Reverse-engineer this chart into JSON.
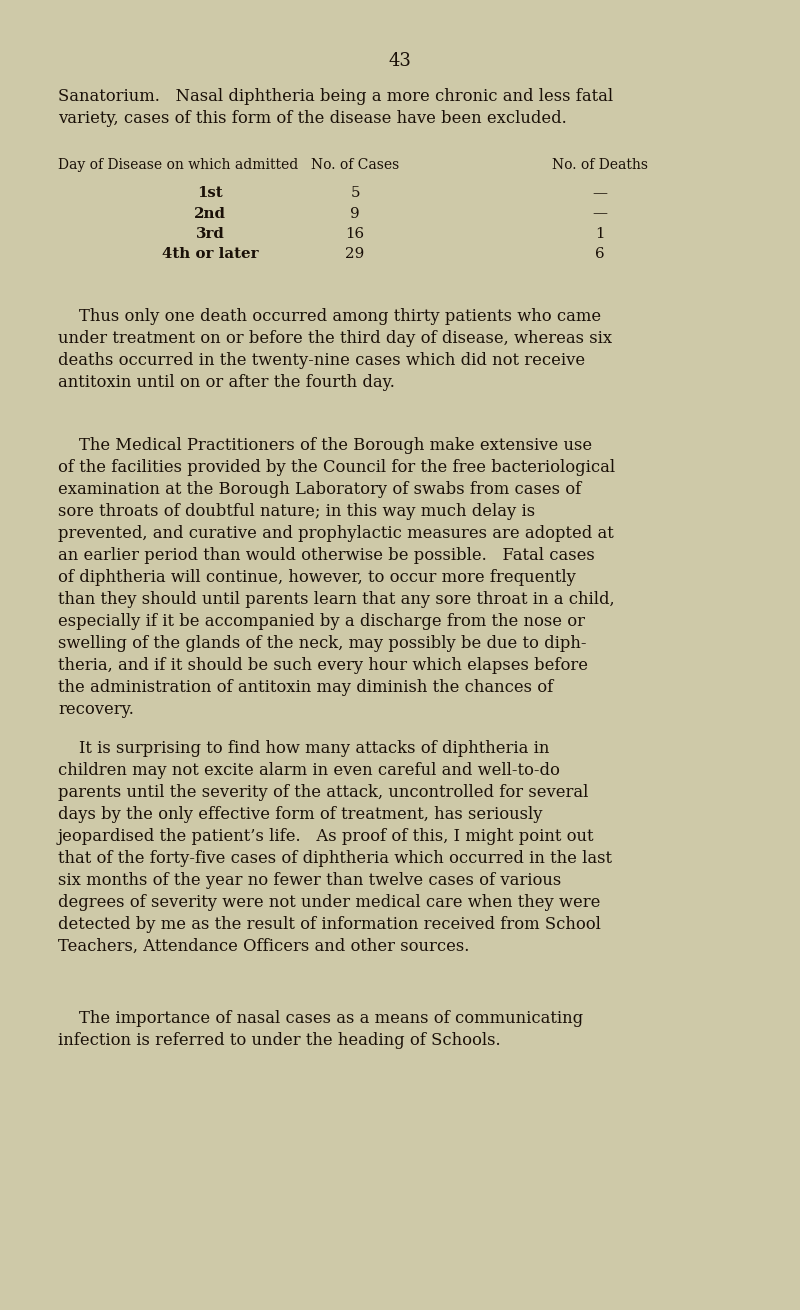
{
  "bg_color": "#cec9a8",
  "text_color": "#1a1008",
  "page_number": "43",
  "opening_para_line1": "Sanatorium.   Nasal diphtheria being a more chronic and less fatal",
  "opening_para_line2": "variety, cases of this form of the disease have been excluded.",
  "table_header_col1": "Day of Disease on which admitted",
  "table_header_col2": "No. of Cases",
  "table_header_col3": "No. of Deaths",
  "table_rows": [
    {
      "day": "1st",
      "cases": "5",
      "deaths": "—"
    },
    {
      "day": "2nd",
      "cases": "9",
      "deaths": "—"
    },
    {
      "day": "3rd",
      "cases": "16",
      "deaths": "1"
    },
    {
      "day": "4th or later",
      "cases": "29",
      "deaths": "6"
    }
  ],
  "para1_lines": [
    "    Thus only one death occurred among thirty patients who came",
    "under treatment on or before the third day of disease, whereas six",
    "deaths occurred in the twenty-nine cases which did not receive",
    "antitoxin until on or after the fourth day."
  ],
  "para2_lines": [
    "    The Medical Practitioners of the Borough make extensive use",
    "of the facilities provided by the Council for the free bacteriological",
    "examination at the Borough Laboratory of swabs from cases of",
    "sore throats of doubtful nature; in this way much delay is",
    "prevented, and curative and prophylactic measures are adopted at",
    "an earlier period than would otherwise be possible.   Fatal cases",
    "of diphtheria will continue, however, to occur more frequently",
    "than they should until parents learn that any sore throat in a child,",
    "especially if it be accompanied by a discharge from the nose or",
    "swelling of the glands of the neck, may possibly be due to diph-",
    "theria, and if it should be such every hour which elapses before",
    "the administration of antitoxin may diminish the chances of",
    "recovery."
  ],
  "para3_lines": [
    "    It is surprising to find how many attacks of diphtheria in",
    "children may not excite alarm in even careful and well-to-do",
    "parents until the severity of the attack, uncontrolled for several",
    "days by the only effective form of treatment, has seriously",
    "jeopardised the patient’s life.   As proof of this, I might point out",
    "that of the forty-five cases of diphtheria which occurred in the last",
    "six months of the year no fewer than twelve cases of various",
    "degrees of severity were not under medical care when they were",
    "detected by me as the result of information received from School",
    "Teachers, Attendance Officers and other sources."
  ],
  "para4_lines": [
    "    The importance of nasal cases as a means of communicating",
    "infection is referred to under the heading of Schools."
  ]
}
